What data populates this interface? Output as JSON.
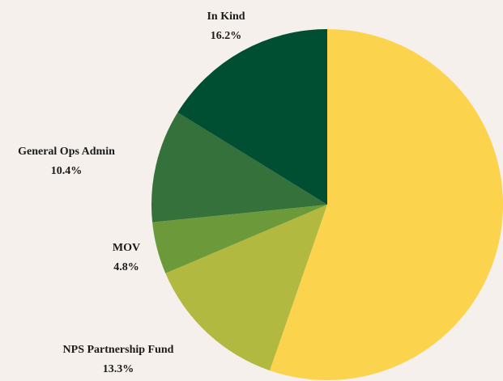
{
  "chart_data": {
    "type": "pie",
    "start_angle_deg": 0,
    "direction": "clockwise",
    "slices": [
      {
        "label": "",
        "value": 55.3,
        "value_label": "",
        "color": "#fcd34d"
      },
      {
        "label": "NPS Partnership Fund",
        "value": 13.3,
        "value_label": "13.3%",
        "color": "#b2b940"
      },
      {
        "label": "MOV",
        "value": 4.8,
        "value_label": "4.8%",
        "color": "#6c9a3b"
      },
      {
        "label": "General Ops Admin",
        "value": 10.4,
        "value_label": "10.4%",
        "color": "#35713a"
      },
      {
        "label": "In Kind",
        "value": 16.2,
        "value_label": "16.2%",
        "color": "#004f32"
      }
    ]
  }
}
